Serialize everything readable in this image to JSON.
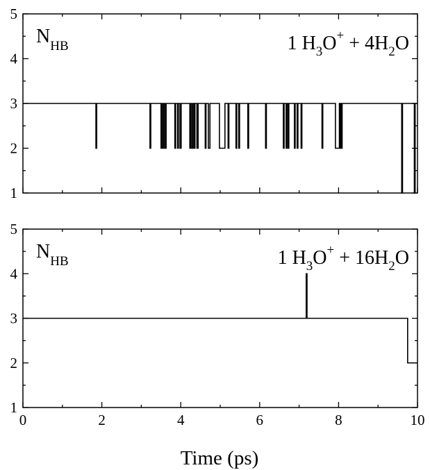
{
  "chart_data": [
    {
      "type": "line",
      "step": true,
      "xlabel": "",
      "ylabel": "",
      "xlim": [
        0,
        10
      ],
      "ylim": [
        1,
        5
      ],
      "yticks": [
        "1",
        "2",
        "3",
        "4",
        "5"
      ],
      "xticks": [],
      "left_label": {
        "main": "N",
        "sub": "HB"
      },
      "system_label": {
        "p1": "1 H",
        "s1": "3",
        "p2": "O",
        "sup": "+",
        "p3": " + 4H",
        "s2": "2",
        "p4": "O"
      },
      "series": [
        {
          "baseline": 3,
          "dips_to_2": [
            [
              1.85,
              1.87
            ],
            [
              3.22,
              3.24
            ],
            [
              3.5,
              3.52
            ],
            [
              3.54,
              3.57
            ],
            [
              3.6,
              3.63
            ],
            [
              3.85,
              3.87
            ],
            [
              3.92,
              3.94
            ],
            [
              3.98,
              4.01
            ],
            [
              4.23,
              4.25
            ],
            [
              4.28,
              4.31
            ],
            [
              4.34,
              4.36
            ],
            [
              4.41,
              4.44
            ],
            [
              4.62,
              4.64
            ],
            [
              4.7,
              4.74
            ],
            [
              4.98,
              5.12
            ],
            [
              5.2,
              5.22
            ],
            [
              5.4,
              5.42
            ],
            [
              5.47,
              5.49
            ],
            [
              5.7,
              5.72
            ],
            [
              6.15,
              6.17
            ],
            [
              6.6,
              6.62
            ],
            [
              6.67,
              6.69
            ],
            [
              6.72,
              6.74
            ],
            [
              6.88,
              6.9
            ],
            [
              6.95,
              6.97
            ],
            [
              7.05,
              7.07
            ],
            [
              7.58,
              7.6
            ],
            [
              7.92,
              8.02
            ],
            [
              8.03,
              8.05
            ],
            [
              8.07,
              8.09
            ]
          ],
          "dips_to_1": [
            [
              9.6,
              9.62
            ],
            [
              9.92,
              9.94
            ]
          ]
        }
      ]
    },
    {
      "type": "line",
      "step": true,
      "xlabel": "Time (ps)",
      "ylabel": "",
      "xlim": [
        0,
        10
      ],
      "ylim": [
        1,
        5
      ],
      "yticks": [
        "1",
        "2",
        "3",
        "4",
        "5"
      ],
      "xticks": [
        "0",
        "2",
        "4",
        "6",
        "8",
        "10"
      ],
      "left_label": {
        "main": "N",
        "sub": "HB"
      },
      "system_label": {
        "p1": "1 H",
        "s1": "3",
        "p2": "O",
        "sup": "+",
        "p3": " + 16H",
        "s2": "2",
        "p4": "O"
      },
      "series": [
        {
          "baseline": 3,
          "spikes_to_4": [
            [
              7.18,
              7.2
            ]
          ],
          "drop_to_2_from": 9.75
        }
      ]
    }
  ]
}
